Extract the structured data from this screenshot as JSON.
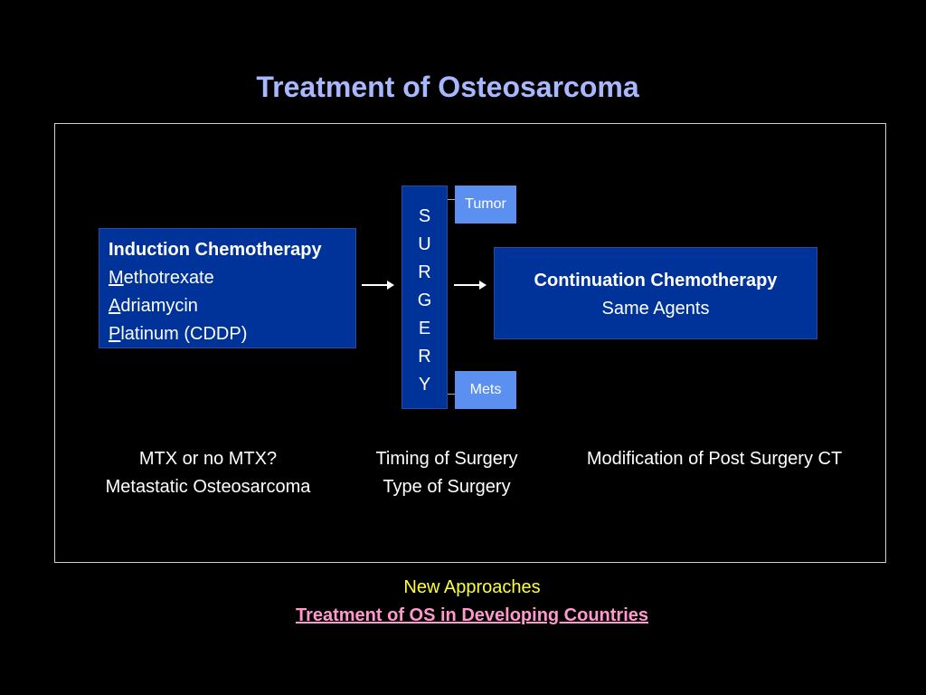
{
  "title": "Treatment of Osteosarcoma",
  "induction": {
    "heading": "Induction Chemotherapy",
    "agents": [
      {
        "initial": "M",
        "rest": "ethotrexate"
      },
      {
        "initial": "A",
        "rest": "driamycin"
      },
      {
        "initial": "P",
        "rest": "latinum (CDDP)"
      }
    ]
  },
  "surgery": {
    "letters": [
      "S",
      "U",
      "R",
      "G",
      "E",
      "R",
      "Y"
    ]
  },
  "tumor": "Tumor",
  "mets": "Mets",
  "continuation": {
    "heading": "Continuation Chemotherapy",
    "sub": "Same Agents"
  },
  "questions": {
    "left": [
      "MTX or no MTX?",
      "Metastatic Osteosarcoma"
    ],
    "middle": [
      "Timing of Surgery",
      "Type of Surgery"
    ],
    "right": [
      "Modification of Post Surgery CT"
    ]
  },
  "footer": {
    "new_approaches": "New Approaches",
    "developing": "Treatment of OS in Developing Countries"
  },
  "colors": {
    "dark_box": "#003399",
    "light_box": "#5b8ff0",
    "title": "#a8b8ff",
    "yellow": "#ffff33",
    "pink": "#ff99cc"
  }
}
